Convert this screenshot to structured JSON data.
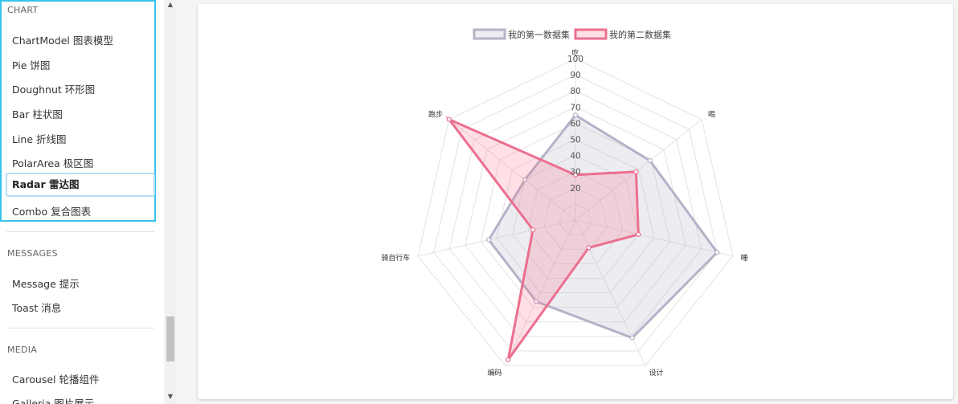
{
  "sidebar": {
    "sections": [
      {
        "title": "CHART",
        "items": [
          {
            "label": "ChartModel 图表模型"
          },
          {
            "label": "Pie 饼图"
          },
          {
            "label": "Doughnut 环形图"
          },
          {
            "label": "Bar 柱状图"
          },
          {
            "label": "Line 折线图"
          },
          {
            "label": "PolarArea 极区图"
          },
          {
            "label": "Radar 雷达图",
            "active": true
          },
          {
            "label": "Combo 复合图表"
          }
        ]
      },
      {
        "title": "MESSAGES",
        "items": [
          {
            "label": "Message 提示"
          },
          {
            "label": "Toast 消息"
          }
        ]
      },
      {
        "title": "MEDIA",
        "items": [
          {
            "label": "Carousel 轮播组件"
          },
          {
            "label": "Galleria 图片展示"
          }
        ]
      }
    ]
  },
  "colors": {
    "accent_border": "#36c2ec",
    "series1_line": "#b3b3c8",
    "series1_fill": "rgba(179,179,200,0.25)",
    "series2_line": "#ec6f8f",
    "series2_fill": "rgba(255,99,132,0.2)",
    "grid": "#e3e3e3"
  },
  "chart_data": {
    "type": "radar",
    "categories": [
      "吃",
      "喝",
      "睡",
      "设计",
      "编码",
      "骑自行车",
      "跑步"
    ],
    "series": [
      {
        "name": "我的第一数据集",
        "values": [
          65,
          59,
          90,
          81,
          56,
          55,
          40
        ]
      },
      {
        "name": "我的第二数据集",
        "values": [
          28,
          48,
          40,
          19,
          96,
          27,
          100
        ]
      }
    ],
    "ticks": [
      20,
      30,
      40,
      50,
      60,
      70,
      80,
      90,
      100
    ],
    "rlim": [
      0,
      100
    ],
    "grid": true,
    "legend_position": "top"
  }
}
